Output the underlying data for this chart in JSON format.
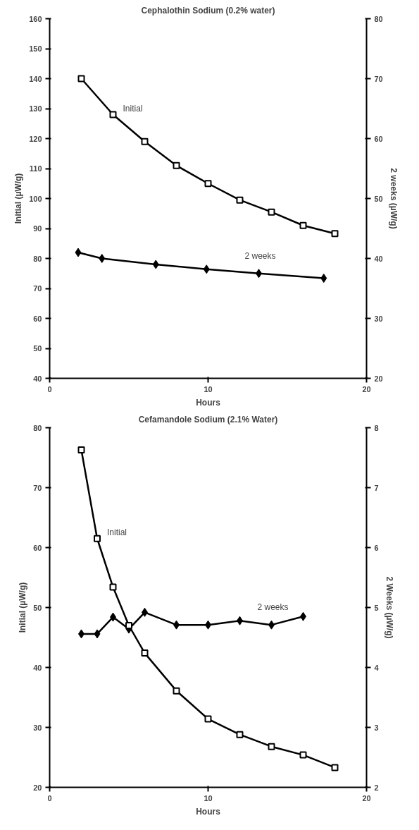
{
  "chart_data": [
    {
      "type": "line",
      "title": "Cephalothin Sodium (0.2% water)",
      "xlabel": "Hours",
      "ylabel": "Initial (µW/g)",
      "y2label": "2 weeks (µW/g)",
      "xlim": [
        0,
        20
      ],
      "xticks": [
        0,
        10,
        20
      ],
      "ylim": [
        40,
        160
      ],
      "yticks": [
        40,
        50,
        60,
        70,
        80,
        90,
        100,
        110,
        120,
        130,
        140,
        150,
        160
      ],
      "y2lim": [
        20,
        80
      ],
      "y2ticks": [
        20,
        30,
        40,
        50,
        60,
        70,
        80
      ],
      "grid": false,
      "line_style": "solid",
      "series": [
        {
          "name": "Initial",
          "color": "#000000",
          "marker": "square",
          "x": [
            2,
            4,
            6,
            8,
            10,
            12,
            14,
            16,
            18
          ],
          "values": [
            140,
            128,
            119,
            111,
            105,
            99.5,
            95.5,
            91,
            88.3
          ]
        },
        {
          "name": "2 weeks",
          "color": "#000000",
          "marker": "diamond",
          "axis": "y2",
          "x": [
            1.8,
            3.3,
            6.7,
            9.9,
            13.2,
            17.3
          ],
          "values": [
            41,
            40,
            39,
            38.2,
            37.5,
            36.7
          ]
        }
      ]
    },
    {
      "type": "line",
      "title": "Cefamandole Sodium (2.1% Water)",
      "xlabel": "Hours",
      "ylabel": "Initial (µW/g)",
      "y2label": "2 Weeks (µW/g)",
      "xlim": [
        0,
        20
      ],
      "xticks": [
        0,
        10,
        20
      ],
      "ylim": [
        20,
        80
      ],
      "yticks": [
        20,
        30,
        40,
        50,
        60,
        70,
        80
      ],
      "y2lim": [
        2,
        8
      ],
      "y2ticks": [
        2,
        3,
        4,
        5,
        6,
        7,
        8
      ],
      "grid": false,
      "line_style": "solid",
      "series": [
        {
          "name": "Initial",
          "color": "#000000",
          "marker": "square",
          "x": [
            2,
            3,
            4,
            5,
            6,
            8,
            10,
            12,
            14,
            16,
            18
          ],
          "values": [
            76.3,
            61.5,
            53.4,
            47,
            42.4,
            36.1,
            31.4,
            28.8,
            26.8,
            25.4,
            23.3
          ]
        },
        {
          "name": "2 weeks",
          "color": "#000000",
          "marker": "diamond",
          "axis": "y2",
          "x": [
            2,
            3,
            4,
            5,
            6,
            8,
            10,
            12,
            14,
            16
          ],
          "values": [
            4.56,
            4.56,
            4.84,
            4.64,
            4.92,
            4.71,
            4.71,
            4.78,
            4.71,
            4.85
          ]
        }
      ]
    }
  ]
}
